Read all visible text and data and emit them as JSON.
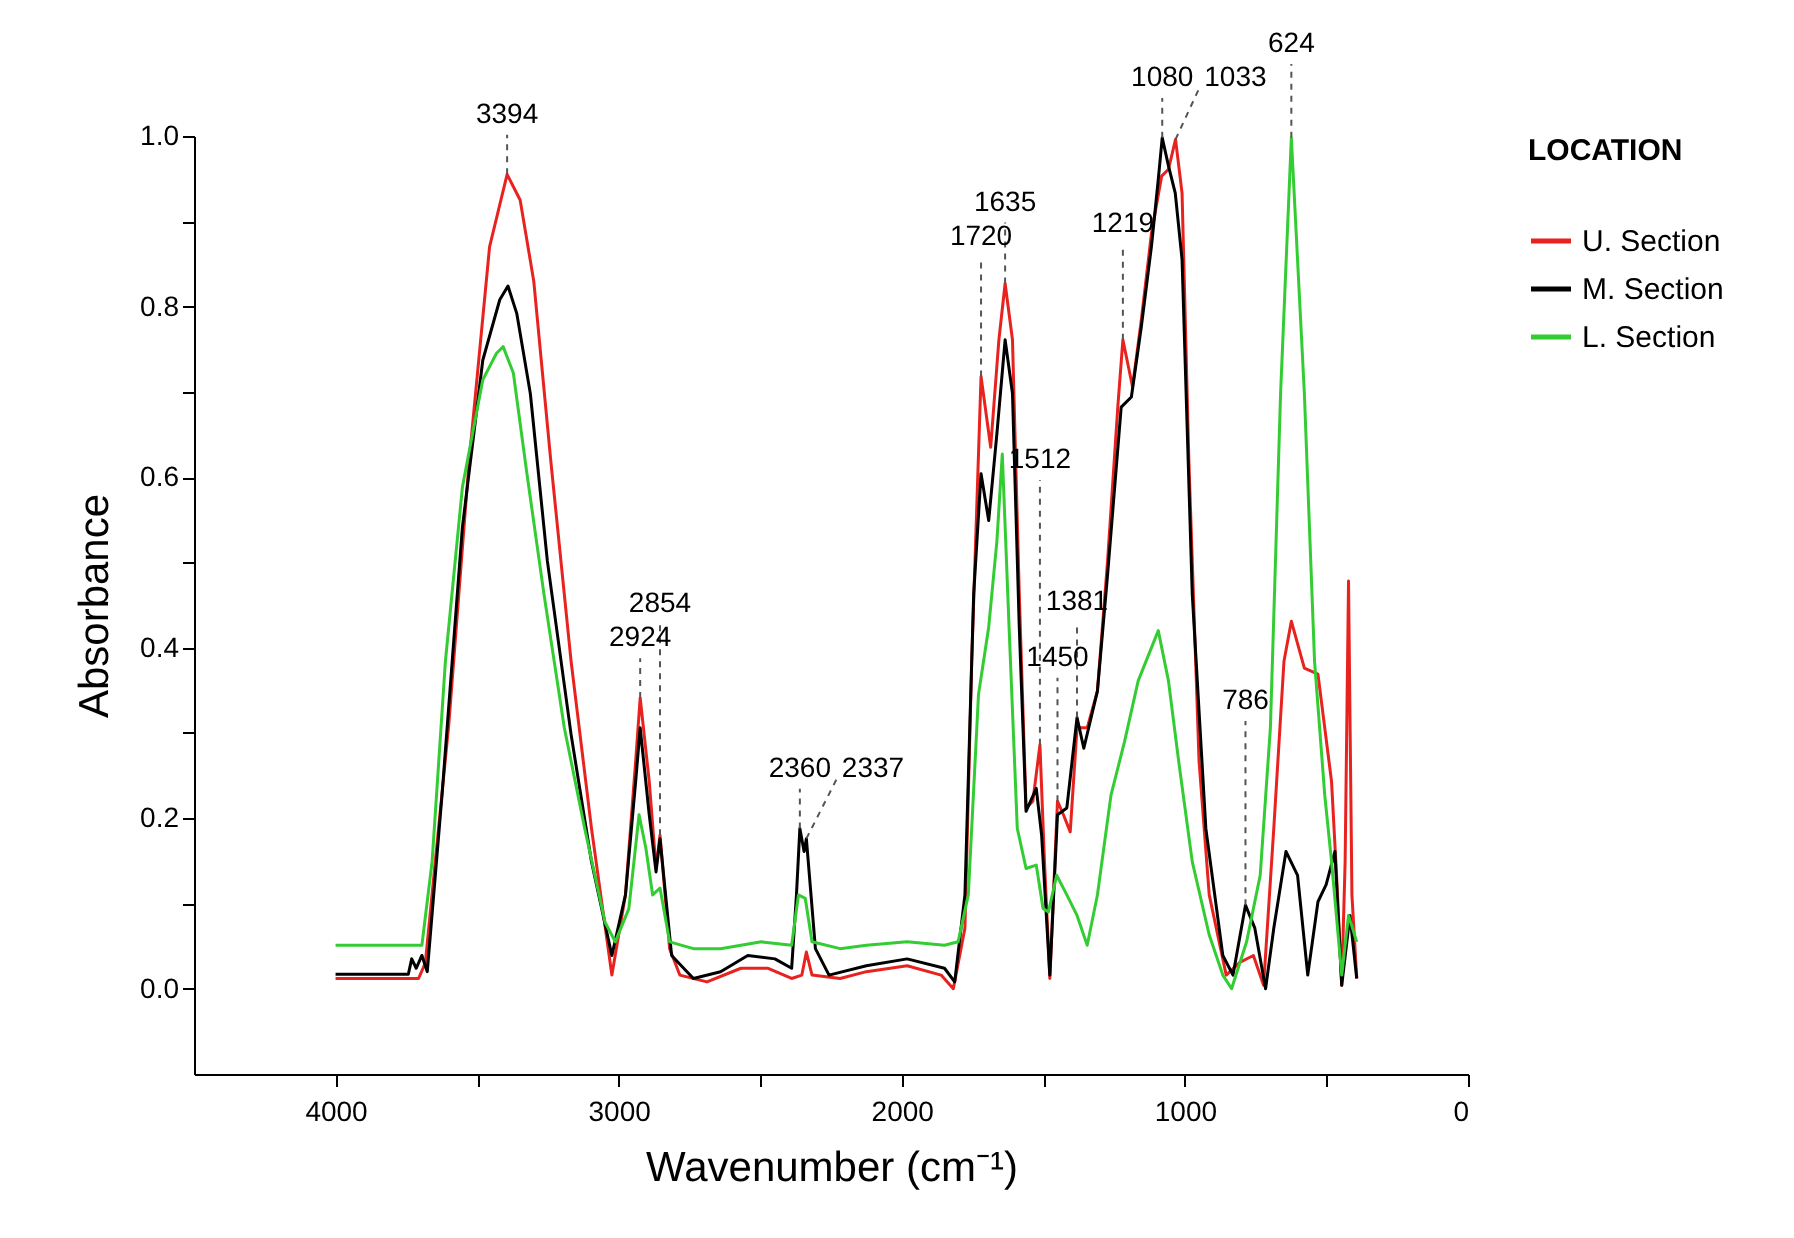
{
  "chart_data": {
    "type": "line",
    "xlabel": "Wavenumber (cm⁻¹)",
    "ylabel": "Absorbance",
    "legend_title": "LOCATION",
    "legend": "top right",
    "xlim": [
      4500,
      0
    ],
    "ylim": [
      -0.1,
      1.0
    ],
    "xticks": [
      4000,
      {
        "value": 3500,
        "label": null
      },
      3000,
      {
        "value": 2500,
        "label": null
      },
      2000,
      {
        "value": 1500,
        "label": null
      },
      1000,
      {
        "value": 500,
        "label": null
      },
      0
    ],
    "yticks": [
      {
        "value": 0,
        "label": "0.0"
      },
      {
        "value": 0.1,
        "label": null
      },
      {
        "value": 0.2,
        "label": "0.2"
      },
      {
        "value": 0.3,
        "label": null
      },
      {
        "value": 0.4,
        "label": "0.4"
      },
      {
        "value": 0.5,
        "label": null
      },
      {
        "value": 0.6,
        "label": "0.6"
      },
      {
        "value": 0.7,
        "label": null
      },
      {
        "value": 0.8,
        "label": "0.8"
      },
      {
        "value": 0.9,
        "label": null
      },
      {
        "value": 1.0,
        "label": "1.0"
      }
    ],
    "grid": false,
    "series": [
      {
        "name": "U. Section",
        "color": "#e8231f",
        "x": [
          4000,
          3707,
          3683,
          3600,
          3528,
          3456,
          3394,
          3348,
          3300,
          3240,
          3168,
          3096,
          3024,
          2976,
          2940,
          2924,
          2892,
          2868,
          2854,
          2820,
          2784,
          2688,
          2568,
          2472,
          2389,
          2353,
          2337,
          2317,
          2218,
          2125,
          1981,
          1861,
          1818,
          1777,
          1753,
          1720,
          1686,
          1657,
          1635,
          1609,
          1585,
          1561,
          1537,
          1512,
          1496,
          1477,
          1450,
          1429,
          1405,
          1381,
          1345,
          1309,
          1273,
          1237,
          1219,
          1185,
          1154,
          1118,
          1082,
          1058,
          1033,
          1010,
          986,
          950,
          914,
          854,
          806,
          758,
          722,
          686,
          650,
          624,
          578,
          530,
          482,
          463,
          446,
          434,
          422,
          410,
          393
        ],
        "values": [
          0.012,
          0.012,
          0.03,
          0.31,
          0.62,
          0.87,
          0.955,
          0.925,
          0.83,
          0.62,
          0.384,
          0.188,
          0.016,
          0.11,
          0.267,
          0.341,
          0.243,
          0.141,
          0.18,
          0.047,
          0.016,
          0.008,
          0.024,
          0.024,
          0.012,
          0.016,
          0.043,
          0.016,
          0.012,
          0.02,
          0.027,
          0.016,
          0.0,
          0.071,
          0.384,
          0.718,
          0.635,
          0.761,
          0.827,
          0.761,
          0.463,
          0.212,
          0.22,
          0.286,
          0.149,
          0.012,
          0.22,
          0.204,
          0.184,
          0.306,
          0.306,
          0.349,
          0.502,
          0.682,
          0.761,
          0.706,
          0.784,
          0.886,
          0.953,
          0.961,
          0.996,
          0.933,
          0.62,
          0.267,
          0.11,
          0.016,
          0.031,
          0.039,
          0.004,
          0.188,
          0.384,
          0.431,
          0.376,
          0.369,
          0.243,
          0.125,
          0.004,
          0.149,
          0.478,
          0.11,
          0.012
        ]
      },
      {
        "name": "M. Section",
        "color": "#000000",
        "x": [
          4000,
          3743,
          3731,
          3715,
          3695,
          3676,
          3624,
          3552,
          3480,
          3420,
          3391,
          3360,
          3312,
          3252,
          3168,
          3096,
          3024,
          2976,
          2940,
          2924,
          2892,
          2868,
          2854,
          2813,
          2736,
          2640,
          2544,
          2448,
          2389,
          2372,
          2360,
          2345,
          2337,
          2305,
          2257,
          2125,
          1981,
          1849,
          1813,
          1777,
          1746,
          1720,
          1693,
          1664,
          1635,
          1609,
          1585,
          1561,
          1525,
          1506,
          1477,
          1450,
          1417,
          1381,
          1357,
          1309,
          1273,
          1225,
          1189,
          1154,
          1118,
          1094,
          1080,
          1058,
          1034,
          1010,
          974,
          926,
          866,
          830,
          786,
          753,
          715,
          686,
          643,
          602,
          566,
          530,
          501,
          470,
          446,
          417,
          393
        ],
        "values": [
          0.017,
          0.017,
          0.035,
          0.024,
          0.039,
          0.02,
          0.227,
          0.541,
          0.737,
          0.808,
          0.824,
          0.792,
          0.698,
          0.502,
          0.298,
          0.149,
          0.039,
          0.11,
          0.243,
          0.306,
          0.204,
          0.137,
          0.176,
          0.039,
          0.012,
          0.02,
          0.039,
          0.035,
          0.024,
          0.11,
          0.188,
          0.161,
          0.176,
          0.047,
          0.016,
          0.027,
          0.035,
          0.024,
          0.008,
          0.11,
          0.463,
          0.604,
          0.549,
          0.651,
          0.761,
          0.698,
          0.424,
          0.208,
          0.235,
          0.18,
          0.016,
          0.204,
          0.212,
          0.318,
          0.282,
          0.349,
          0.486,
          0.682,
          0.694,
          0.776,
          0.871,
          0.949,
          0.998,
          0.965,
          0.933,
          0.855,
          0.463,
          0.188,
          0.039,
          0.016,
          0.098,
          0.071,
          0.0,
          0.071,
          0.161,
          0.133,
          0.016,
          0.102,
          0.122,
          0.161,
          0.004,
          0.086,
          0.012
        ]
      },
      {
        "name": "L. Section",
        "color": "#33cc33",
        "x": [
          4000,
          3695,
          3659,
          3612,
          3552,
          3480,
          3432,
          3408,
          3372,
          3324,
          3264,
          3192,
          3120,
          3048,
          3012,
          2964,
          2928,
          2904,
          2880,
          2854,
          2820,
          2736,
          2640,
          2496,
          2389,
          2365,
          2341,
          2317,
          2218,
          2125,
          1981,
          1849,
          1801,
          1765,
          1729,
          1693,
          1664,
          1645,
          1621,
          1592,
          1561,
          1525,
          1501,
          1482,
          1453,
          1417,
          1381,
          1345,
          1309,
          1261,
          1213,
          1165,
          1118,
          1094,
          1058,
          1022,
          974,
          914,
          866,
          835,
          782,
          734,
          698,
          662,
          624,
          578,
          542,
          506,
          482,
          446,
          422,
          393
        ],
        "values": [
          0.051,
          0.051,
          0.149,
          0.384,
          0.588,
          0.714,
          0.745,
          0.753,
          0.722,
          0.604,
          0.463,
          0.306,
          0.188,
          0.078,
          0.055,
          0.094,
          0.204,
          0.165,
          0.11,
          0.118,
          0.055,
          0.047,
          0.047,
          0.055,
          0.051,
          0.11,
          0.106,
          0.055,
          0.047,
          0.051,
          0.055,
          0.051,
          0.055,
          0.11,
          0.345,
          0.424,
          0.525,
          0.627,
          0.424,
          0.188,
          0.141,
          0.145,
          0.094,
          0.09,
          0.133,
          0.11,
          0.086,
          0.051,
          0.11,
          0.227,
          0.29,
          0.361,
          0.4,
          0.42,
          0.361,
          0.267,
          0.149,
          0.063,
          0.016,
          0.0,
          0.055,
          0.133,
          0.306,
          0.698,
          0.998,
          0.698,
          0.384,
          0.227,
          0.149,
          0.016,
          0.086,
          0.055
        ]
      }
    ],
    "annotations": [
      {
        "text": "3394",
        "x": 3394,
        "y": 0.955
      },
      {
        "text": "2924",
        "x": 2924,
        "y": 0.341
      },
      {
        "text": "2854",
        "x": 2854,
        "y": 0.18
      },
      {
        "text": "2360",
        "x": 2360,
        "y": 0.188
      },
      {
        "text": "2337",
        "x": 2337,
        "y": 0.176
      },
      {
        "text": "1720",
        "x": 1720,
        "y": 0.718
      },
      {
        "text": "1635",
        "x": 1635,
        "y": 0.827
      },
      {
        "text": "1512",
        "x": 1512,
        "y": 0.286
      },
      {
        "text": "1450",
        "x": 1450,
        "y": 0.22
      },
      {
        "text": "1381",
        "x": 1381,
        "y": 0.318
      },
      {
        "text": "1219",
        "x": 1219,
        "y": 0.761
      },
      {
        "text": "1080",
        "x": 1080,
        "y": 0.998
      },
      {
        "text": "1033",
        "x": 1033,
        "y": 0.996
      },
      {
        "text": "786",
        "x": 786,
        "y": 0.098
      },
      {
        "text": "624",
        "x": 624,
        "y": 0.998
      }
    ]
  }
}
